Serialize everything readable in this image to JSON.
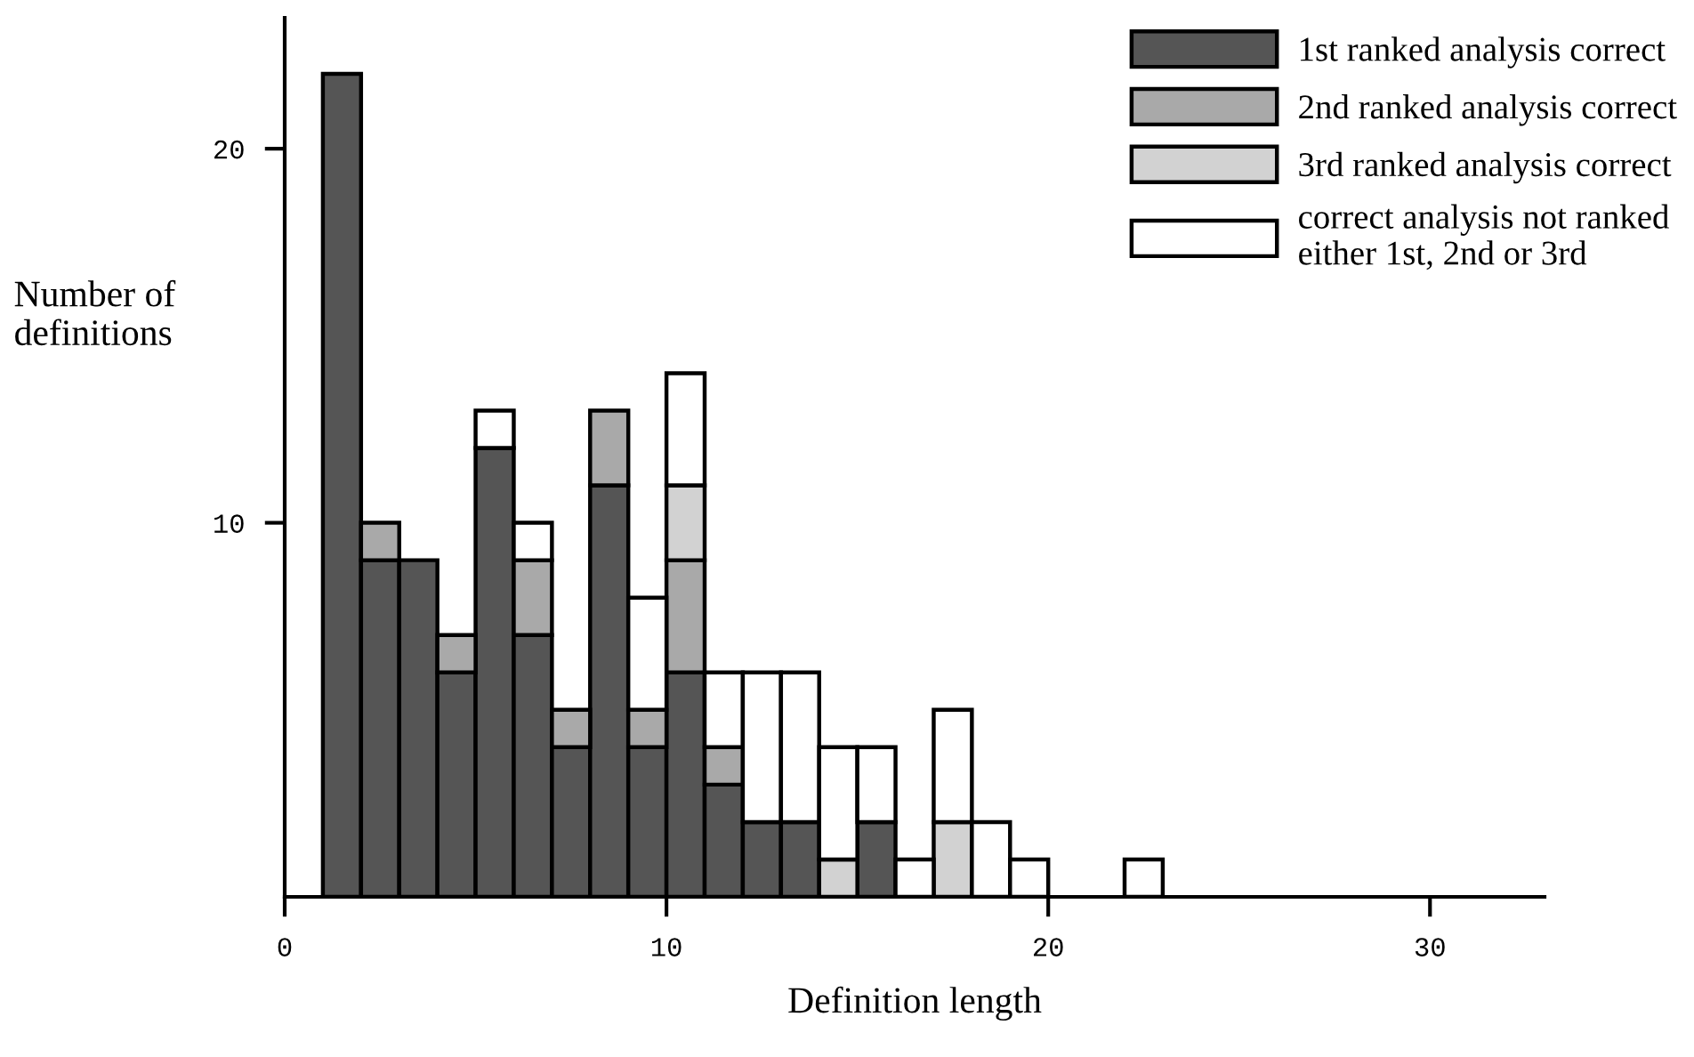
{
  "chart_data": {
    "type": "bar",
    "xlabel": "Definition length",
    "ylabel": "Number of\ndefinitions",
    "x": [
      1.5,
      2.5,
      3.5,
      4.5,
      5.5,
      6.5,
      7.5,
      8.5,
      9.5,
      10.5,
      11.5,
      12.5,
      13.5,
      14.5,
      15.5,
      16.5,
      17.5,
      18.5,
      19.5,
      20.5,
      21.5,
      22.5
    ],
    "stacked": true,
    "series": [
      {
        "name": "1st ranked analysis correct",
        "color": "#555555",
        "values": [
          22,
          9,
          9,
          6,
          12,
          7,
          4,
          11,
          4,
          6,
          3,
          2,
          2,
          0,
          2,
          0,
          0,
          0,
          0,
          0,
          0,
          0
        ]
      },
      {
        "name": "2nd ranked analysis correct",
        "color": "#a9a9a9",
        "values": [
          0,
          1,
          0,
          1,
          0,
          2,
          1,
          2,
          1,
          3,
          1,
          0,
          0,
          0,
          0,
          0,
          0,
          0,
          0,
          0,
          0,
          0
        ]
      },
      {
        "name": "3rd ranked analysis correct",
        "color": "#d2d2d2",
        "values": [
          0,
          0,
          0,
          0,
          0,
          0,
          0,
          0,
          0,
          2,
          0,
          0,
          0,
          1,
          0,
          0,
          2,
          0,
          0,
          0,
          0,
          0
        ]
      },
      {
        "name": "correct analysis not ranked\neither 1st, 2nd or 3rd",
        "color": "#ffffff",
        "values": [
          0,
          0,
          0,
          0,
          1,
          1,
          0,
          0,
          3,
          3,
          2,
          4,
          4,
          3,
          2,
          1,
          3,
          2,
          1,
          0,
          0,
          1
        ]
      }
    ],
    "xlim": [
      0,
      33
    ],
    "ylim": [
      0,
      23.5
    ],
    "xticks": [
      0,
      10,
      20,
      30
    ],
    "yticks": [
      10,
      20
    ],
    "grid": false,
    "legend": "top right"
  }
}
